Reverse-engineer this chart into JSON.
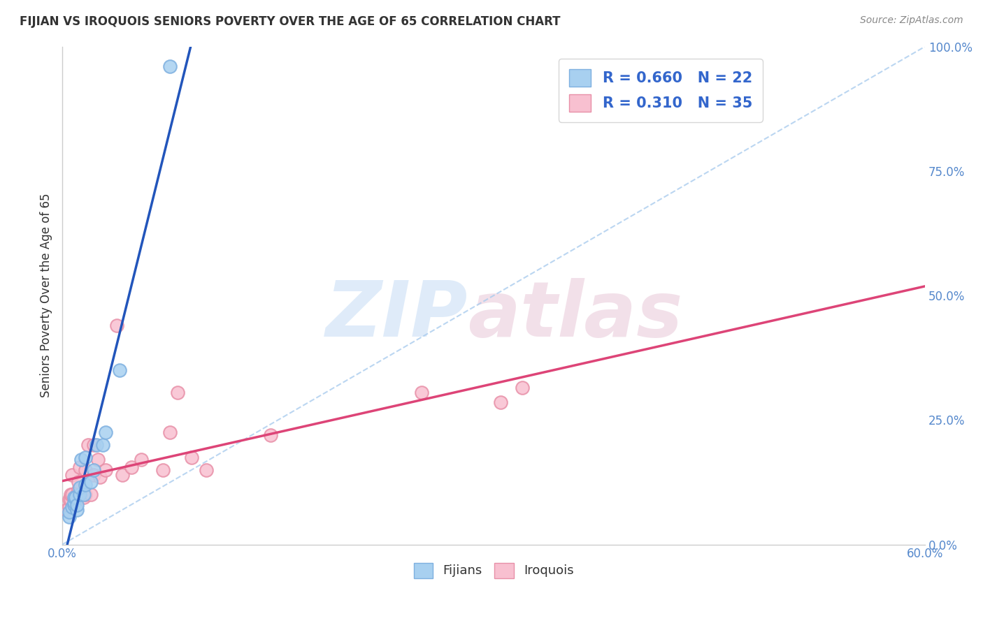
{
  "title": "FIJIAN VS IROQUOIS SENIORS POVERTY OVER THE AGE OF 65 CORRELATION CHART",
  "source": "Source: ZipAtlas.com",
  "ylabel": "Seniors Poverty Over the Age of 65",
  "xlim": [
    0.0,
    0.6
  ],
  "ylim": [
    0.0,
    1.0
  ],
  "xticks": [
    0.0,
    0.6
  ],
  "xticklabels": [
    "0.0%",
    "60.0%"
  ],
  "yticks": [
    0.0,
    0.25,
    0.5,
    0.75,
    1.0
  ],
  "yticklabels": [
    "0.0%",
    "25.0%",
    "50.0%",
    "75.0%",
    "100.0%"
  ],
  "fijian_color": "#A8D0F0",
  "fijian_edge_color": "#7EB0E0",
  "iroquois_color": "#F8C0D0",
  "iroquois_edge_color": "#E890A8",
  "fijian_line_color": "#2255BB",
  "iroquois_line_color": "#DD4477",
  "fijian_R": 0.66,
  "fijian_N": 22,
  "iroquois_R": 0.31,
  "iroquois_N": 35,
  "background_color": "#FFFFFF",
  "watermark_zip": "ZIP",
  "watermark_atlas": "atlas",
  "grid_color": "#E0E0E0",
  "fijian_x": [
    0.005,
    0.005,
    0.007,
    0.008,
    0.008,
    0.008,
    0.009,
    0.01,
    0.01,
    0.012,
    0.012,
    0.013,
    0.015,
    0.016,
    0.016,
    0.02,
    0.022,
    0.024,
    0.028,
    0.03,
    0.04,
    0.075
  ],
  "fijian_y": [
    0.055,
    0.065,
    0.075,
    0.08,
    0.085,
    0.095,
    0.095,
    0.07,
    0.08,
    0.1,
    0.115,
    0.17,
    0.1,
    0.12,
    0.175,
    0.125,
    0.15,
    0.2,
    0.2,
    0.225,
    0.35,
    0.96
  ],
  "iroquois_x": [
    0.003,
    0.005,
    0.005,
    0.006,
    0.006,
    0.007,
    0.007,
    0.009,
    0.01,
    0.011,
    0.011,
    0.012,
    0.015,
    0.016,
    0.016,
    0.018,
    0.02,
    0.022,
    0.022,
    0.025,
    0.026,
    0.03,
    0.038,
    0.042,
    0.048,
    0.055,
    0.07,
    0.075,
    0.08,
    0.09,
    0.1,
    0.145,
    0.25,
    0.305,
    0.32
  ],
  "iroquois_y": [
    0.07,
    0.075,
    0.09,
    0.09,
    0.1,
    0.1,
    0.14,
    0.085,
    0.1,
    0.11,
    0.125,
    0.155,
    0.095,
    0.1,
    0.15,
    0.2,
    0.1,
    0.14,
    0.2,
    0.17,
    0.135,
    0.15,
    0.44,
    0.14,
    0.155,
    0.17,
    0.15,
    0.225,
    0.305,
    0.175,
    0.15,
    0.22,
    0.305,
    0.285,
    0.315
  ]
}
